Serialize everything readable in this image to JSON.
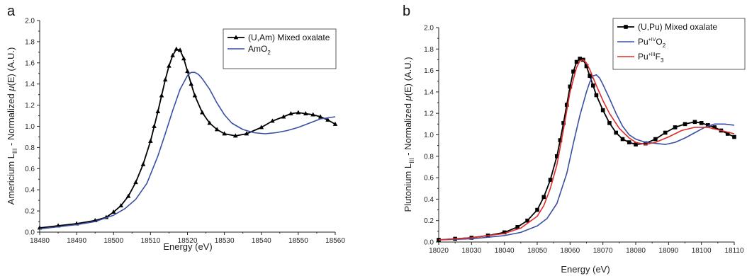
{
  "chart_data": [
    {
      "type": "line",
      "panel_letter": "a",
      "xlabel": "Energy (eV)",
      "ylabel": {
        "pre": "Americium L",
        "sub": "III",
        "post": " - Normalized ",
        "mu": "μ",
        "post2": "(E) (A.U.)"
      },
      "xlim": [
        18480,
        18560
      ],
      "ylim": [
        0,
        2.0
      ],
      "xticks": [
        "18480",
        "18490",
        "18500",
        "18510",
        "18520",
        "18530",
        "18540",
        "18550",
        "18560"
      ],
      "yticks": [
        "0.0",
        "0.2",
        "0.4",
        "0.6",
        "0.8",
        "1.0",
        "1.2",
        "1.4",
        "1.6",
        "1.8",
        "2.0"
      ],
      "legend_position": "top-right",
      "series": [
        {
          "legend": [
            {
              "t": "(U,Am) Mixed oxalate"
            }
          ],
          "color": "#000000",
          "marker": "triangle",
          "x": [
            18480,
            18485,
            18490,
            18495,
            18498,
            18500,
            18502,
            18504,
            18506,
            18508,
            18510,
            18511,
            18512,
            18513,
            18514,
            18515,
            18516,
            18517,
            18518,
            18519,
            18520,
            18521,
            18522,
            18524,
            18526,
            18528,
            18530,
            18533,
            18536,
            18540,
            18543,
            18546,
            18548,
            18550,
            18552,
            18554,
            18556,
            18558,
            18560
          ],
          "y": [
            0.04,
            0.06,
            0.08,
            0.11,
            0.14,
            0.19,
            0.25,
            0.34,
            0.47,
            0.64,
            0.86,
            1.0,
            1.14,
            1.29,
            1.44,
            1.57,
            1.67,
            1.73,
            1.72,
            1.64,
            1.52,
            1.4,
            1.29,
            1.13,
            1.03,
            0.97,
            0.93,
            0.91,
            0.93,
            0.99,
            1.05,
            1.09,
            1.12,
            1.13,
            1.12,
            1.11,
            1.09,
            1.06,
            1.02
          ],
          "marker_step": 1
        },
        {
          "legend": [
            {
              "t": "AmO"
            },
            {
              "t": "2",
              "sub": true
            }
          ],
          "color": "#3a4fa3",
          "marker": "none",
          "x": [
            18480,
            18485,
            18490,
            18495,
            18500,
            18503,
            18506,
            18509,
            18512,
            18514,
            18516,
            18518,
            18520,
            18521,
            18522,
            18523,
            18524,
            18526,
            18528,
            18530,
            18532,
            18535,
            18538,
            18541,
            18544,
            18547,
            18550,
            18553,
            18556,
            18560
          ],
          "y": [
            0.03,
            0.05,
            0.07,
            0.1,
            0.16,
            0.22,
            0.31,
            0.46,
            0.72,
            0.93,
            1.15,
            1.35,
            1.48,
            1.51,
            1.51,
            1.49,
            1.45,
            1.35,
            1.22,
            1.11,
            1.03,
            0.97,
            0.94,
            0.93,
            0.94,
            0.96,
            0.99,
            1.03,
            1.07,
            1.09
          ]
        }
      ]
    },
    {
      "type": "line",
      "panel_letter": "b",
      "xlabel": "Energy (eV)",
      "ylabel": {
        "pre": "Plutonium L",
        "sub": "III",
        "post": " - Normalized ",
        "mu": "μ",
        "post2": "(E) (A.U.)"
      },
      "xlim": [
        18020,
        18110
      ],
      "ylim": [
        0,
        2.0
      ],
      "xticks": [
        "18020",
        "18030",
        "18040",
        "18050",
        "18060",
        "18070",
        "18080",
        "18090",
        "18100",
        "18110"
      ],
      "yticks": [
        "0.0",
        "0.2",
        "0.4",
        "0.6",
        "0.8",
        "1.0",
        "1.2",
        "1.4",
        "1.6",
        "1.8",
        "2.0"
      ],
      "legend_position": "top-right",
      "series": [
        {
          "legend": [
            {
              "t": "(U,Pu) Mixed oxalate"
            }
          ],
          "color": "#000000",
          "marker": "square",
          "x": [
            18020,
            18025,
            18030,
            18035,
            18040,
            18044,
            18047,
            18050,
            18052,
            18054,
            18056,
            18057,
            18058,
            18059,
            18060,
            18061,
            18062,
            18063,
            18064,
            18065,
            18066,
            18067,
            18068,
            18070,
            18072,
            18074,
            18076,
            18078,
            18080,
            18083,
            18086,
            18089,
            18092,
            18095,
            18098,
            18100,
            18102,
            18104,
            18106,
            18108,
            18110
          ],
          "y": [
            0.02,
            0.03,
            0.04,
            0.06,
            0.09,
            0.14,
            0.2,
            0.3,
            0.42,
            0.58,
            0.8,
            0.95,
            1.11,
            1.28,
            1.45,
            1.59,
            1.68,
            1.71,
            1.7,
            1.64,
            1.55,
            1.46,
            1.37,
            1.23,
            1.11,
            1.02,
            0.96,
            0.93,
            0.91,
            0.92,
            0.96,
            1.02,
            1.07,
            1.1,
            1.12,
            1.11,
            1.09,
            1.07,
            1.04,
            1.01,
            0.98
          ],
          "marker_step": 1
        },
        {
          "legend": [
            {
              "t": "Pu"
            },
            {
              "t": "+IV",
              "sup": true
            },
            {
              "t": "O"
            },
            {
              "t": "2",
              "sub": true
            }
          ],
          "color": "#3a4fa3",
          "marker": "none",
          "x": [
            18020,
            18030,
            18040,
            18045,
            18050,
            18053,
            18056,
            18059,
            18061,
            18063,
            18065,
            18066,
            18067,
            18068,
            18069,
            18070,
            18072,
            18074,
            18076,
            18078,
            18080,
            18083,
            18086,
            18089,
            18092,
            18095,
            18098,
            18101,
            18104,
            18107,
            18110
          ],
          "y": [
            0.02,
            0.03,
            0.06,
            0.09,
            0.15,
            0.22,
            0.36,
            0.64,
            0.92,
            1.18,
            1.4,
            1.49,
            1.55,
            1.56,
            1.53,
            1.47,
            1.34,
            1.2,
            1.08,
            1.0,
            0.96,
            0.93,
            0.92,
            0.91,
            0.93,
            0.97,
            1.02,
            1.07,
            1.1,
            1.1,
            1.09
          ]
        },
        {
          "legend": [
            {
              "t": "Pu"
            },
            {
              "t": "+III",
              "sup": true
            },
            {
              "t": "F"
            },
            {
              "t": "3",
              "sub": true
            }
          ],
          "color": "#e02b2b",
          "marker": "none",
          "x": [
            18020,
            18030,
            18040,
            18045,
            18050,
            18052,
            18054,
            18056,
            18058,
            18060,
            18062,
            18063,
            18064,
            18065,
            18066,
            18068,
            18070,
            18072,
            18075,
            18078,
            18080,
            18083,
            18086,
            18090,
            18094,
            18098,
            18102,
            18106,
            18110
          ],
          "y": [
            0.02,
            0.04,
            0.08,
            0.13,
            0.24,
            0.34,
            0.5,
            0.72,
            1.05,
            1.4,
            1.63,
            1.69,
            1.7,
            1.67,
            1.61,
            1.46,
            1.32,
            1.2,
            1.06,
            0.97,
            0.93,
            0.91,
            0.93,
            0.98,
            1.04,
            1.07,
            1.07,
            1.04,
            1.01
          ]
        }
      ]
    }
  ]
}
